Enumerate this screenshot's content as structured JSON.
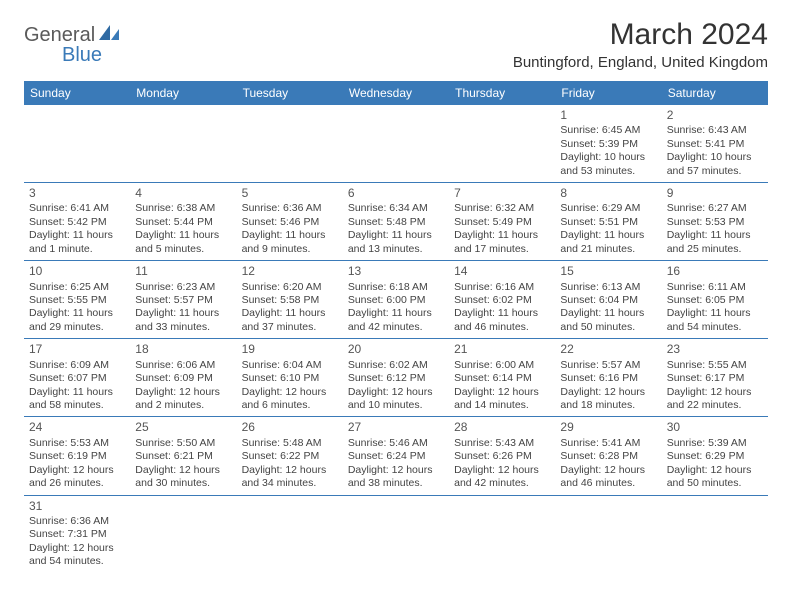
{
  "logo": {
    "text1": "General",
    "text2": "Blue"
  },
  "title": "March 2024",
  "subtitle": "Buntingford, England, United Kingdom",
  "colors": {
    "header_bg": "#3a7ab8",
    "header_text": "#ffffff",
    "border": "#3a7ab8",
    "text": "#444444",
    "logo_gray": "#5a5a5a",
    "logo_blue": "#3a7ab8"
  },
  "weekdays": [
    "Sunday",
    "Monday",
    "Tuesday",
    "Wednesday",
    "Thursday",
    "Friday",
    "Saturday"
  ],
  "weeks": [
    [
      null,
      null,
      null,
      null,
      null,
      {
        "n": "1",
        "sunrise": "Sunrise: 6:45 AM",
        "sunset": "Sunset: 5:39 PM",
        "daylight": "Daylight: 10 hours and 53 minutes."
      },
      {
        "n": "2",
        "sunrise": "Sunrise: 6:43 AM",
        "sunset": "Sunset: 5:41 PM",
        "daylight": "Daylight: 10 hours and 57 minutes."
      }
    ],
    [
      {
        "n": "3",
        "sunrise": "Sunrise: 6:41 AM",
        "sunset": "Sunset: 5:42 PM",
        "daylight": "Daylight: 11 hours and 1 minute."
      },
      {
        "n": "4",
        "sunrise": "Sunrise: 6:38 AM",
        "sunset": "Sunset: 5:44 PM",
        "daylight": "Daylight: 11 hours and 5 minutes."
      },
      {
        "n": "5",
        "sunrise": "Sunrise: 6:36 AM",
        "sunset": "Sunset: 5:46 PM",
        "daylight": "Daylight: 11 hours and 9 minutes."
      },
      {
        "n": "6",
        "sunrise": "Sunrise: 6:34 AM",
        "sunset": "Sunset: 5:48 PM",
        "daylight": "Daylight: 11 hours and 13 minutes."
      },
      {
        "n": "7",
        "sunrise": "Sunrise: 6:32 AM",
        "sunset": "Sunset: 5:49 PM",
        "daylight": "Daylight: 11 hours and 17 minutes."
      },
      {
        "n": "8",
        "sunrise": "Sunrise: 6:29 AM",
        "sunset": "Sunset: 5:51 PM",
        "daylight": "Daylight: 11 hours and 21 minutes."
      },
      {
        "n": "9",
        "sunrise": "Sunrise: 6:27 AM",
        "sunset": "Sunset: 5:53 PM",
        "daylight": "Daylight: 11 hours and 25 minutes."
      }
    ],
    [
      {
        "n": "10",
        "sunrise": "Sunrise: 6:25 AM",
        "sunset": "Sunset: 5:55 PM",
        "daylight": "Daylight: 11 hours and 29 minutes."
      },
      {
        "n": "11",
        "sunrise": "Sunrise: 6:23 AM",
        "sunset": "Sunset: 5:57 PM",
        "daylight": "Daylight: 11 hours and 33 minutes."
      },
      {
        "n": "12",
        "sunrise": "Sunrise: 6:20 AM",
        "sunset": "Sunset: 5:58 PM",
        "daylight": "Daylight: 11 hours and 37 minutes."
      },
      {
        "n": "13",
        "sunrise": "Sunrise: 6:18 AM",
        "sunset": "Sunset: 6:00 PM",
        "daylight": "Daylight: 11 hours and 42 minutes."
      },
      {
        "n": "14",
        "sunrise": "Sunrise: 6:16 AM",
        "sunset": "Sunset: 6:02 PM",
        "daylight": "Daylight: 11 hours and 46 minutes."
      },
      {
        "n": "15",
        "sunrise": "Sunrise: 6:13 AM",
        "sunset": "Sunset: 6:04 PM",
        "daylight": "Daylight: 11 hours and 50 minutes."
      },
      {
        "n": "16",
        "sunrise": "Sunrise: 6:11 AM",
        "sunset": "Sunset: 6:05 PM",
        "daylight": "Daylight: 11 hours and 54 minutes."
      }
    ],
    [
      {
        "n": "17",
        "sunrise": "Sunrise: 6:09 AM",
        "sunset": "Sunset: 6:07 PM",
        "daylight": "Daylight: 11 hours and 58 minutes."
      },
      {
        "n": "18",
        "sunrise": "Sunrise: 6:06 AM",
        "sunset": "Sunset: 6:09 PM",
        "daylight": "Daylight: 12 hours and 2 minutes."
      },
      {
        "n": "19",
        "sunrise": "Sunrise: 6:04 AM",
        "sunset": "Sunset: 6:10 PM",
        "daylight": "Daylight: 12 hours and 6 minutes."
      },
      {
        "n": "20",
        "sunrise": "Sunrise: 6:02 AM",
        "sunset": "Sunset: 6:12 PM",
        "daylight": "Daylight: 12 hours and 10 minutes."
      },
      {
        "n": "21",
        "sunrise": "Sunrise: 6:00 AM",
        "sunset": "Sunset: 6:14 PM",
        "daylight": "Daylight: 12 hours and 14 minutes."
      },
      {
        "n": "22",
        "sunrise": "Sunrise: 5:57 AM",
        "sunset": "Sunset: 6:16 PM",
        "daylight": "Daylight: 12 hours and 18 minutes."
      },
      {
        "n": "23",
        "sunrise": "Sunrise: 5:55 AM",
        "sunset": "Sunset: 6:17 PM",
        "daylight": "Daylight: 12 hours and 22 minutes."
      }
    ],
    [
      {
        "n": "24",
        "sunrise": "Sunrise: 5:53 AM",
        "sunset": "Sunset: 6:19 PM",
        "daylight": "Daylight: 12 hours and 26 minutes."
      },
      {
        "n": "25",
        "sunrise": "Sunrise: 5:50 AM",
        "sunset": "Sunset: 6:21 PM",
        "daylight": "Daylight: 12 hours and 30 minutes."
      },
      {
        "n": "26",
        "sunrise": "Sunrise: 5:48 AM",
        "sunset": "Sunset: 6:22 PM",
        "daylight": "Daylight: 12 hours and 34 minutes."
      },
      {
        "n": "27",
        "sunrise": "Sunrise: 5:46 AM",
        "sunset": "Sunset: 6:24 PM",
        "daylight": "Daylight: 12 hours and 38 minutes."
      },
      {
        "n": "28",
        "sunrise": "Sunrise: 5:43 AM",
        "sunset": "Sunset: 6:26 PM",
        "daylight": "Daylight: 12 hours and 42 minutes."
      },
      {
        "n": "29",
        "sunrise": "Sunrise: 5:41 AM",
        "sunset": "Sunset: 6:28 PM",
        "daylight": "Daylight: 12 hours and 46 minutes."
      },
      {
        "n": "30",
        "sunrise": "Sunrise: 5:39 AM",
        "sunset": "Sunset: 6:29 PM",
        "daylight": "Daylight: 12 hours and 50 minutes."
      }
    ],
    [
      {
        "n": "31",
        "sunrise": "Sunrise: 6:36 AM",
        "sunset": "Sunset: 7:31 PM",
        "daylight": "Daylight: 12 hours and 54 minutes."
      },
      null,
      null,
      null,
      null,
      null,
      null
    ]
  ]
}
